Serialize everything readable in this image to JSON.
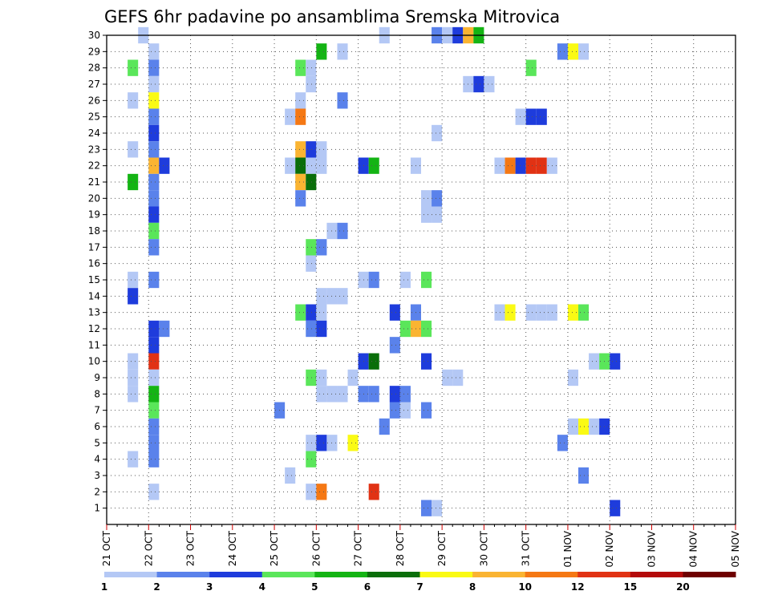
{
  "chart_data": {
    "type": "heatmap",
    "title": "GEFS 6hr padavine po ansamblima Sremska Mitrovica",
    "x_ticks": [
      "21 OCT",
      "22 OCT",
      "23 OCT",
      "24 OCT",
      "25 OCT",
      "26 OCT",
      "27 OCT",
      "28 OCT",
      "29 OCT",
      "30 OCT",
      "31 OCT",
      "01 NOV",
      "02 NOV",
      "03 NOV",
      "04 NOV",
      "05 NOV"
    ],
    "y_ticks": [
      "1",
      "2",
      "3",
      "4",
      "5",
      "6",
      "7",
      "8",
      "9",
      "10",
      "11",
      "12",
      "13",
      "14",
      "15",
      "16",
      "17",
      "18",
      "19",
      "20",
      "21",
      "22",
      "23",
      "24",
      "25",
      "26",
      "27",
      "28",
      "29",
      "30"
    ],
    "y_range": [
      0,
      30
    ],
    "x_range_days": [
      0,
      15
    ],
    "grid": true,
    "legend_position": "bottom",
    "legend_labels": [
      "1",
      "2",
      "3",
      "4",
      "5",
      "6",
      "7",
      "8",
      "10",
      "12",
      "15",
      "20"
    ],
    "legend_colors": [
      "#b4c8f5",
      "#5a82eb",
      "#1e3cdc",
      "#5ae65a",
      "#14b414",
      "#0a6e0a",
      "#fafa14",
      "#fab432",
      "#f57814",
      "#e13214",
      "#b40a0a",
      "#6e0000"
    ],
    "bins": [
      {
        "from": 1,
        "to": 2,
        "color": "#b4c8f5"
      },
      {
        "from": 2,
        "to": 3,
        "color": "#5a82eb"
      },
      {
        "from": 3,
        "to": 4,
        "color": "#1e3cdc"
      },
      {
        "from": 4,
        "to": 5,
        "color": "#5ae65a"
      },
      {
        "from": 5,
        "to": 6,
        "color": "#14b414"
      },
      {
        "from": 6,
        "to": 7,
        "color": "#0a6e0a"
      },
      {
        "from": 7,
        "to": 8,
        "color": "#fafa14"
      },
      {
        "from": 8,
        "to": 10,
        "color": "#fab432"
      },
      {
        "from": 10,
        "to": 12,
        "color": "#f57814"
      },
      {
        "from": 12,
        "to": 15,
        "color": "#e13214"
      },
      {
        "from": 15,
        "to": 20,
        "color": "#b40a0a"
      },
      {
        "from": 20,
        "to": null,
        "color": "#6e0000"
      }
    ],
    "cells_legend": "each cell: [time_step (6h steps from 21 OCT 00Z), ensemble_member, precipitation_mm]",
    "cells": [
      [
        3,
        30,
        1.5
      ],
      [
        26,
        30,
        1.5
      ],
      [
        31,
        30,
        2.5
      ],
      [
        32,
        30,
        1.5
      ],
      [
        33,
        30,
        3.5
      ],
      [
        34,
        30,
        9
      ],
      [
        35,
        30,
        5.5
      ],
      [
        4,
        29,
        1.5
      ],
      [
        20,
        29,
        5.5
      ],
      [
        22,
        29,
        1.5
      ],
      [
        43,
        29,
        2.5
      ],
      [
        44,
        29,
        7.5
      ],
      [
        45,
        29,
        1.5
      ],
      [
        2,
        28,
        4.5
      ],
      [
        4,
        28,
        2.5
      ],
      [
        18,
        28,
        4.5
      ],
      [
        19,
        28,
        1.5
      ],
      [
        40,
        28,
        4.5
      ],
      [
        4,
        27,
        1.5
      ],
      [
        19,
        27,
        1.5
      ],
      [
        34,
        27,
        1.5
      ],
      [
        35,
        27,
        3.5
      ],
      [
        36,
        27,
        1.5
      ],
      [
        2,
        26,
        1.5
      ],
      [
        4,
        26,
        7.5
      ],
      [
        18,
        26,
        1.5
      ],
      [
        22,
        26,
        2.5
      ],
      [
        4,
        25,
        2.5
      ],
      [
        17,
        25,
        1.5
      ],
      [
        18,
        25,
        11
      ],
      [
        39,
        25,
        1.5
      ],
      [
        40,
        25,
        3.5
      ],
      [
        41,
        25,
        3.5
      ],
      [
        4,
        24,
        3.5
      ],
      [
        31,
        24,
        1.5
      ],
      [
        2,
        23,
        1.5
      ],
      [
        4,
        23,
        2.5
      ],
      [
        18,
        23,
        9
      ],
      [
        19,
        23,
        3.5
      ],
      [
        20,
        23,
        1.5
      ],
      [
        4,
        22,
        9
      ],
      [
        5,
        22,
        3.5
      ],
      [
        17,
        22,
        1.5
      ],
      [
        18,
        22,
        6.5
      ],
      [
        19,
        22,
        1.5
      ],
      [
        20,
        22,
        1.5
      ],
      [
        24,
        22,
        3.5
      ],
      [
        25,
        22,
        5.5
      ],
      [
        29,
        22,
        1.5
      ],
      [
        37,
        22,
        1.5
      ],
      [
        38,
        22,
        11
      ],
      [
        39,
        22,
        3.5
      ],
      [
        40,
        22,
        13
      ],
      [
        41,
        22,
        13
      ],
      [
        42,
        22,
        1.5
      ],
      [
        2,
        21,
        5.5
      ],
      [
        4,
        21,
        2.5
      ],
      [
        18,
        21,
        9
      ],
      [
        19,
        21,
        6.5
      ],
      [
        4,
        20,
        2.5
      ],
      [
        18,
        20,
        2.5
      ],
      [
        30,
        20,
        1.5
      ],
      [
        31,
        20,
        2.5
      ],
      [
        4,
        19,
        3.5
      ],
      [
        30,
        19,
        1.5
      ],
      [
        31,
        19,
        1.5
      ],
      [
        4,
        18,
        4.5
      ],
      [
        21,
        18,
        1.5
      ],
      [
        22,
        18,
        2.5
      ],
      [
        4,
        17,
        2.5
      ],
      [
        19,
        17,
        4.5
      ],
      [
        20,
        17,
        2.5
      ],
      [
        19,
        16,
        1.5
      ],
      [
        2,
        15,
        1.5
      ],
      [
        4,
        15,
        2.5
      ],
      [
        24,
        15,
        1.5
      ],
      [
        25,
        15,
        2.5
      ],
      [
        28,
        15,
        1.5
      ],
      [
        30,
        15,
        4.5
      ],
      [
        2,
        14,
        3.5
      ],
      [
        20,
        14,
        1.5
      ],
      [
        21,
        14,
        1.5
      ],
      [
        22,
        14,
        1.5
      ],
      [
        18,
        13,
        4.5
      ],
      [
        19,
        13,
        3.5
      ],
      [
        20,
        13,
        1.5
      ],
      [
        27,
        13,
        3.5
      ],
      [
        29,
        13,
        2.5
      ],
      [
        37,
        13,
        1.5
      ],
      [
        38,
        13,
        7.5
      ],
      [
        40,
        13,
        1.5
      ],
      [
        41,
        13,
        1.5
      ],
      [
        42,
        13,
        1.5
      ],
      [
        44,
        13,
        7.5
      ],
      [
        45,
        13,
        4.5
      ],
      [
        4,
        12,
        3.5
      ],
      [
        5,
        12,
        2.5
      ],
      [
        19,
        12,
        2.5
      ],
      [
        20,
        12,
        3.5
      ],
      [
        28,
        12,
        4.5
      ],
      [
        29,
        12,
        9
      ],
      [
        30,
        12,
        4.5
      ],
      [
        4,
        11,
        3.5
      ],
      [
        27,
        11,
        2.5
      ],
      [
        2,
        10,
        1.5
      ],
      [
        4,
        10,
        13
      ],
      [
        24,
        10,
        3.5
      ],
      [
        25,
        10,
        6.5
      ],
      [
        30,
        10,
        3.5
      ],
      [
        46,
        10,
        1.5
      ],
      [
        47,
        10,
        4.5
      ],
      [
        48,
        10,
        3.5
      ],
      [
        2,
        9,
        1.5
      ],
      [
        4,
        9,
        1.5
      ],
      [
        19,
        9,
        4.5
      ],
      [
        20,
        9,
        1.5
      ],
      [
        23,
        9,
        1.5
      ],
      [
        32,
        9,
        1.5
      ],
      [
        33,
        9,
        1.5
      ],
      [
        44,
        9,
        1.5
      ],
      [
        2,
        8,
        1.5
      ],
      [
        4,
        8,
        5.5
      ],
      [
        20,
        8,
        1.5
      ],
      [
        21,
        8,
        1.5
      ],
      [
        22,
        8,
        1.5
      ],
      [
        24,
        8,
        2.5
      ],
      [
        25,
        8,
        2.5
      ],
      [
        27,
        8,
        3.5
      ],
      [
        28,
        8,
        2.5
      ],
      [
        4,
        7,
        4.5
      ],
      [
        16,
        7,
        2.5
      ],
      [
        27,
        7,
        2.5
      ],
      [
        28,
        7,
        1.5
      ],
      [
        30,
        7,
        2.5
      ],
      [
        4,
        6,
        2.5
      ],
      [
        26,
        6,
        2.5
      ],
      [
        44,
        6,
        1.5
      ],
      [
        45,
        6,
        7.5
      ],
      [
        46,
        6,
        1.5
      ],
      [
        47,
        6,
        3.5
      ],
      [
        4,
        5,
        2.5
      ],
      [
        19,
        5,
        1.5
      ],
      [
        20,
        5,
        3.5
      ],
      [
        21,
        5,
        1.5
      ],
      [
        23,
        5,
        7.5
      ],
      [
        43,
        5,
        2.5
      ],
      [
        2,
        4,
        1.5
      ],
      [
        4,
        4,
        2.5
      ],
      [
        19,
        4,
        4.5
      ],
      [
        17,
        3,
        1.5
      ],
      [
        45,
        3,
        2.5
      ],
      [
        4,
        2,
        1.5
      ],
      [
        19,
        2,
        1.5
      ],
      [
        20,
        2,
        11
      ],
      [
        25,
        2,
        13
      ],
      [
        30,
        1,
        2.5
      ],
      [
        31,
        1,
        1.5
      ],
      [
        48,
        1,
        3.5
      ]
    ]
  }
}
